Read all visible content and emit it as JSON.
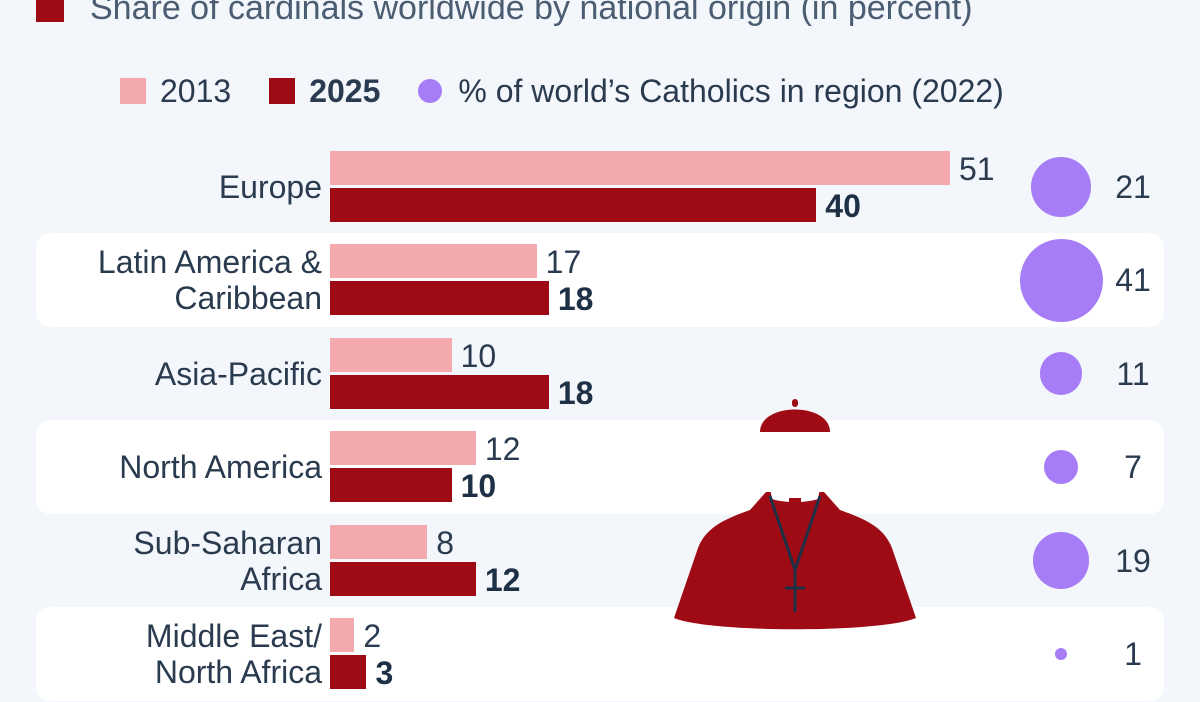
{
  "title": "Share of cardinals worldwide by national origin (in percent)",
  "legend": {
    "items": [
      {
        "label": "2013",
        "color": "#f4a9ae",
        "shape": "square"
      },
      {
        "label": "2025",
        "color": "#9e0b14",
        "shape": "square"
      },
      {
        "label": "% of world’s Catholics in region (2022)",
        "color": "#a67cf7",
        "shape": "circle"
      }
    ]
  },
  "illustration": {
    "icon": "cardinal-icon"
  },
  "chart_data": {
    "type": "bar",
    "orientation": "horizontal",
    "categories": [
      [
        "Europe"
      ],
      [
        "Latin America &",
        "Caribbean"
      ],
      [
        "Asia-Pacific"
      ],
      [
        "North America"
      ],
      [
        "Sub-Saharan",
        "Africa"
      ],
      [
        "Middle East/",
        "North Africa"
      ]
    ],
    "series": [
      {
        "name": "2013",
        "color": "#f4a9ae",
        "values": [
          51,
          17,
          10,
          12,
          8,
          2
        ]
      },
      {
        "name": "2025",
        "color": "#9e0b14",
        "values": [
          40,
          18,
          18,
          10,
          12,
          3
        ]
      }
    ],
    "catholics_share": {
      "name": "% of world’s Catholics in region (2022)",
      "color": "#a67cf7",
      "values": [
        21,
        41,
        11,
        7,
        19,
        1
      ]
    },
    "xlim": [
      0,
      51
    ],
    "grid": false,
    "legend_position": "top"
  }
}
